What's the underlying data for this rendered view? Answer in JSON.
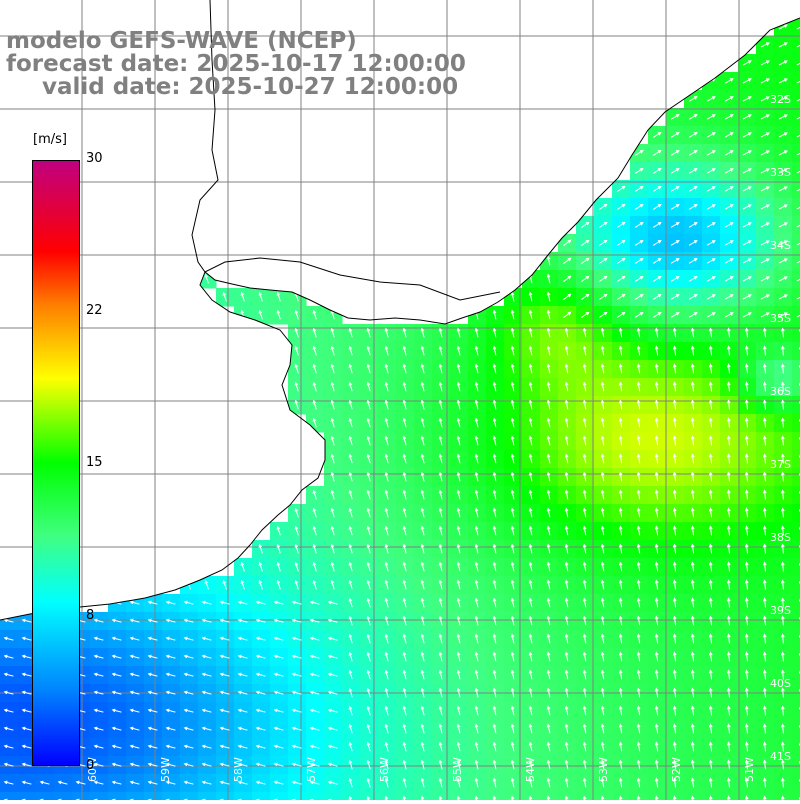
{
  "title": {
    "model": "modelo GEFS-WAVE (NCEP)",
    "forecast": "forecast date: 2025-10-17 12:00:00",
    "valid": "valid date: 2025-10-27 12:00:00"
  },
  "colorbar": {
    "unit": "[m/s]",
    "ticks": [
      "30",
      "22",
      "15",
      "8",
      "0"
    ],
    "colors": [
      "#0000ff",
      "#0080ff",
      "#00ffff",
      "#00ff00",
      "#ffff00",
      "#ff8000",
      "#ff0000",
      "#c00080"
    ]
  },
  "latitude_labels": [
    "32S",
    "33S",
    "34S",
    "35S",
    "36S",
    "37S",
    "38S",
    "39S",
    "40S",
    "41S"
  ],
  "longitude_labels": [
    "60W",
    "59W",
    "58W",
    "57W",
    "56W",
    "55W",
    "54W",
    "53W",
    "52W",
    "51W"
  ],
  "colors": {
    "land": "#ffffff",
    "grid": "#808080",
    "coast": "#000000",
    "arrow": "#ffffff",
    "title": "#808080"
  }
}
